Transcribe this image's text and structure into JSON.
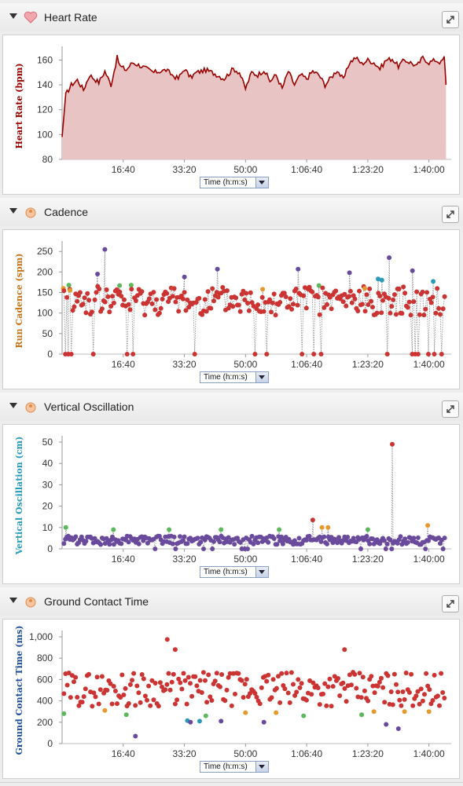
{
  "panels": [
    {
      "id": "hr",
      "title": "Heart Rate",
      "icon": "heart-icon"
    },
    {
      "id": "cad",
      "title": "Cadence",
      "icon": "runner-icon"
    },
    {
      "id": "vo",
      "title": "Vertical Oscillation",
      "icon": "runner-icon"
    },
    {
      "id": "gct",
      "title": "Ground Contact Time",
      "icon": "runner-icon"
    }
  ],
  "x_selector": {
    "value": "Time (h:m:s)"
  },
  "x_ticks": [
    "16:40",
    "33:20",
    "50:00",
    "1:06:40",
    "1:23:20",
    "1:40:00"
  ],
  "colors": {
    "hr_line": "#990000",
    "hr_fill": "#e9c4c4",
    "red": "#cc3333",
    "orange": "#e69a2e",
    "green": "#5cb85c",
    "blue": "#2a9bb7",
    "purple": "#6a4a9c",
    "cad_label": "#c8741a",
    "vo_label": "#2a9bb7",
    "gct_label": "#1f4e96"
  },
  "chart_data": [
    {
      "type": "area",
      "title": "Heart Rate",
      "ylabel": "Heart Rate (bpm)",
      "xlabel": "Time (h:m:s)",
      "ylim": [
        80,
        166
      ],
      "yticks": [
        80,
        100,
        120,
        140,
        160
      ],
      "xlim_s": [
        0,
        6300
      ],
      "x_s": [
        0,
        60,
        150,
        250,
        350,
        450,
        600,
        700,
        800,
        900,
        950,
        1050,
        1150,
        1300,
        1500,
        1700,
        1800,
        1900,
        2000,
        2100,
        2200,
        2350,
        2500,
        2650,
        2800,
        2900,
        3000,
        3100,
        3200,
        3300,
        3400,
        3500,
        3600,
        3700,
        3800,
        3900,
        4000,
        4100,
        4200,
        4300,
        4400,
        4500,
        4600,
        4700,
        4800,
        4900,
        5000,
        5100,
        5200,
        5300,
        5400,
        5500,
        5600,
        5700,
        5800,
        5900,
        6000,
        6100,
        6200,
        6250,
        6280
      ],
      "y": [
        98,
        132,
        140,
        144,
        136,
        148,
        142,
        151,
        140,
        162,
        155,
        152,
        158,
        155,
        150,
        152,
        148,
        145,
        153,
        146,
        150,
        152,
        149,
        145,
        153,
        150,
        137,
        150,
        148,
        152,
        143,
        148,
        137,
        151,
        140,
        148,
        145,
        151,
        148,
        140,
        146,
        152,
        144,
        158,
        162,
        157,
        160,
        158,
        153,
        160,
        161,
        155,
        160,
        158,
        155,
        162,
        158,
        160,
        158,
        162,
        140
      ]
    },
    {
      "type": "scatter",
      "title": "Cadence",
      "ylabel": "Run Cadence (spm)",
      "xlabel": "Time (h:m:s)",
      "ylim": [
        0,
        260
      ],
      "yticks": [
        0,
        50,
        100,
        150,
        200,
        250
      ],
      "highlights": [
        {
          "x_s": 700,
          "y": 255,
          "color": "purple"
        },
        {
          "x_s": 580,
          "y": 195,
          "color": "purple"
        },
        {
          "x_s": 940,
          "y": 167,
          "color": "green"
        },
        {
          "x_s": 1130,
          "y": 168,
          "color": "green"
        },
        {
          "x_s": 2000,
          "y": 188,
          "color": "purple"
        },
        {
          "x_s": 1830,
          "y": 160,
          "color": "orange"
        },
        {
          "x_s": 2540,
          "y": 207,
          "color": "purple"
        },
        {
          "x_s": 3280,
          "y": 158,
          "color": "orange"
        },
        {
          "x_s": 3860,
          "y": 207,
          "color": "purple"
        },
        {
          "x_s": 4200,
          "y": 167,
          "color": "green"
        },
        {
          "x_s": 4700,
          "y": 198,
          "color": "purple"
        },
        {
          "x_s": 5170,
          "y": 183,
          "color": "blue"
        },
        {
          "x_s": 5230,
          "y": 180,
          "color": "blue"
        },
        {
          "x_s": 5350,
          "y": 235,
          "color": "purple"
        },
        {
          "x_s": 5730,
          "y": 203,
          "color": "purple"
        },
        {
          "x_s": 6070,
          "y": 177,
          "color": "blue"
        },
        {
          "x_s": 110,
          "y": 168,
          "color": "green"
        },
        {
          "x_s": 130,
          "y": 155,
          "color": "orange"
        },
        {
          "x_s": 20,
          "y": 160,
          "color": "orange"
        },
        {
          "x_s": 4950,
          "y": 160,
          "color": "orange"
        }
      ],
      "base_mean": 110,
      "drops_to": 0
    },
    {
      "type": "scatter",
      "title": "Vertical Oscillation",
      "ylabel": "Vertical Oscillation (cm)",
      "xlabel": "Time (h:m:s)",
      "ylim": [
        0,
        50
      ],
      "yticks": [
        0,
        10,
        20,
        30,
        40,
        50
      ],
      "highlights": [
        {
          "x_s": 5400,
          "y": 49,
          "color": "red"
        },
        {
          "x_s": 4100,
          "y": 13.5,
          "color": "red"
        },
        {
          "x_s": 4250,
          "y": 10,
          "color": "orange"
        },
        {
          "x_s": 4350,
          "y": 10,
          "color": "orange"
        },
        {
          "x_s": 5980,
          "y": 11,
          "color": "orange"
        },
        {
          "x_s": 60,
          "y": 10,
          "color": "green"
        },
        {
          "x_s": 840,
          "y": 9,
          "color": "green"
        },
        {
          "x_s": 1750,
          "y": 9,
          "color": "green"
        },
        {
          "x_s": 2600,
          "y": 9,
          "color": "green"
        },
        {
          "x_s": 3550,
          "y": 9,
          "color": "green"
        },
        {
          "x_s": 5000,
          "y": 9,
          "color": "green"
        }
      ],
      "base_mean": 4,
      "drops_to": 0
    },
    {
      "type": "scatter",
      "title": "Ground Contact Time",
      "ylabel": "Ground Contact Time (ms)",
      "xlabel": "Time (h:m:s)",
      "ylim": [
        0,
        1000
      ],
      "yticks": [
        0,
        200,
        400,
        600,
        800,
        "1,000"
      ],
      "highlights": [
        {
          "x_s": 1720,
          "y": 975,
          "color": "red"
        },
        {
          "x_s": 1850,
          "y": 880,
          "color": "red"
        },
        {
          "x_s": 4620,
          "y": 880,
          "color": "red"
        },
        {
          "x_s": 1200,
          "y": 70,
          "color": "purple"
        },
        {
          "x_s": 2100,
          "y": 200,
          "color": "purple"
        },
        {
          "x_s": 2600,
          "y": 210,
          "color": "purple"
        },
        {
          "x_s": 3300,
          "y": 200,
          "color": "purple"
        },
        {
          "x_s": 5300,
          "y": 180,
          "color": "purple"
        },
        {
          "x_s": 5500,
          "y": 140,
          "color": "purple"
        },
        {
          "x_s": 1050,
          "y": 270,
          "color": "green"
        },
        {
          "x_s": 2350,
          "y": 260,
          "color": "green"
        },
        {
          "x_s": 3950,
          "y": 260,
          "color": "green"
        },
        {
          "x_s": 4900,
          "y": 270,
          "color": "green"
        },
        {
          "x_s": 30,
          "y": 280,
          "color": "green"
        },
        {
          "x_s": 2050,
          "y": 215,
          "color": "blue"
        },
        {
          "x_s": 2250,
          "y": 210,
          "color": "blue"
        },
        {
          "x_s": 700,
          "y": 310,
          "color": "orange"
        },
        {
          "x_s": 3000,
          "y": 290,
          "color": "orange"
        },
        {
          "x_s": 3500,
          "y": 290,
          "color": "orange"
        },
        {
          "x_s": 5100,
          "y": 300,
          "color": "orange"
        },
        {
          "x_s": 5600,
          "y": 300,
          "color": "orange"
        },
        {
          "x_s": 6000,
          "y": 300,
          "color": "orange"
        }
      ],
      "base_mean": 470,
      "drops_to": null
    }
  ]
}
